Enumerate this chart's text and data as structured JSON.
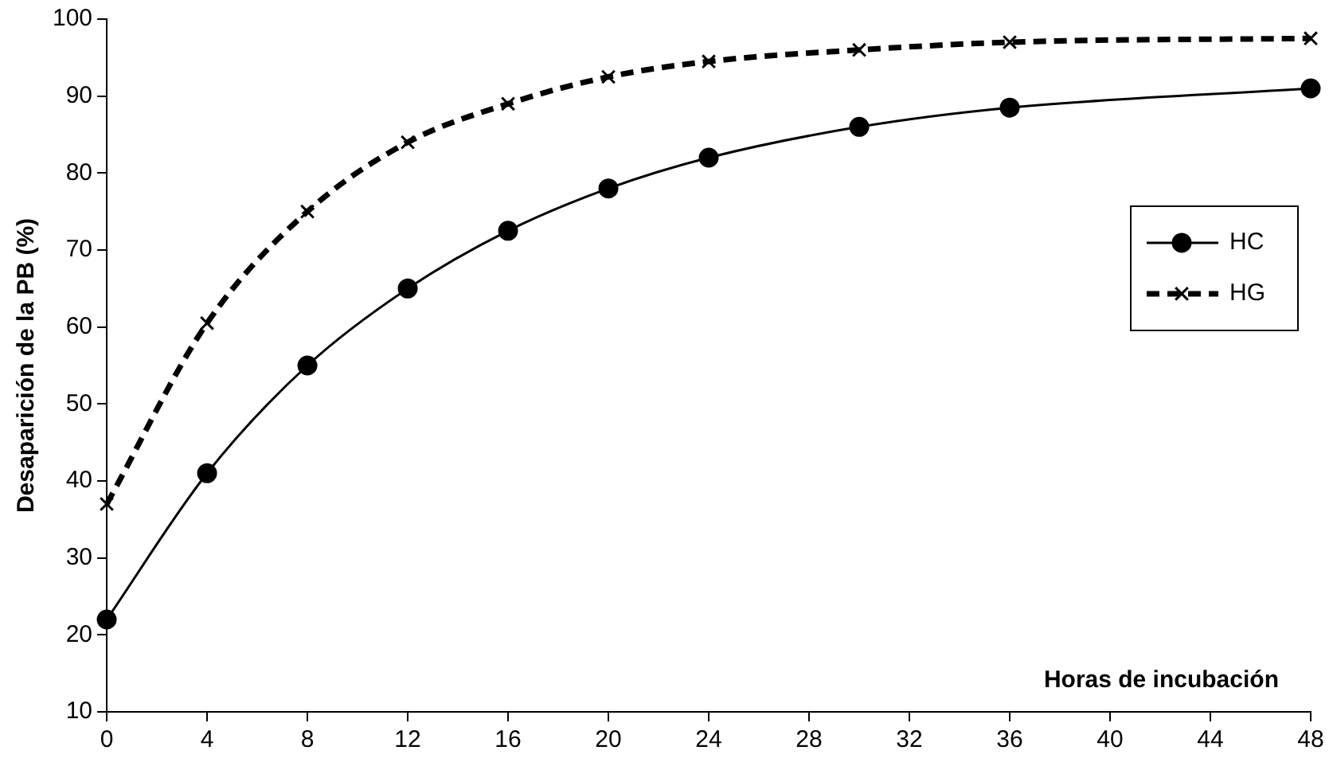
{
  "chart_data": {
    "type": "line",
    "xlabel": "Horas de incubación",
    "ylabel": "Desaparición de la PB (%)",
    "xlim": [
      0,
      48
    ],
    "xticks": [
      0,
      4,
      8,
      12,
      16,
      20,
      24,
      28,
      32,
      36,
      40,
      44,
      48
    ],
    "ylim": [
      10,
      100
    ],
    "yticks": [
      10,
      20,
      30,
      40,
      50,
      60,
      70,
      80,
      90,
      100
    ],
    "x": [
      0,
      4,
      8,
      12,
      16,
      20,
      24,
      30,
      36,
      48
    ],
    "grid": false,
    "legend": "right",
    "series": [
      {
        "name": "HC",
        "color": "#000000",
        "marker": "circle",
        "line_style": "solid",
        "values": [
          22,
          41,
          55,
          65,
          72.5,
          78,
          82,
          86,
          88.5,
          91
        ]
      },
      {
        "name": "HG",
        "color": "#000000",
        "marker": "cross",
        "line_style": "dashed",
        "values": [
          37,
          60.5,
          75,
          84,
          89,
          92.5,
          94.5,
          96,
          97,
          97.5
        ]
      }
    ]
  }
}
